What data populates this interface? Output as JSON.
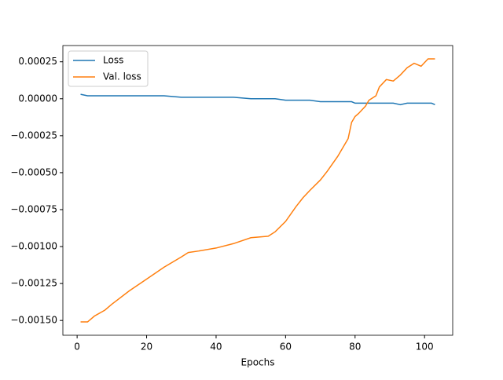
{
  "chart_data": {
    "type": "line",
    "xlabel": "Epochs",
    "x": [
      1,
      3,
      5,
      8,
      10,
      15,
      20,
      25,
      30,
      32,
      35,
      40,
      45,
      50,
      55,
      57,
      60,
      63,
      65,
      67,
      70,
      72,
      75,
      78,
      79,
      80,
      81,
      83,
      84,
      86,
      87,
      89,
      91,
      93,
      95,
      97,
      99,
      101,
      102,
      103
    ],
    "series": [
      {
        "name": "Loss",
        "color": "#1f77b4",
        "values": [
          3e-05,
          2e-05,
          2e-05,
          2e-05,
          2e-05,
          2e-05,
          2e-05,
          2e-05,
          1e-05,
          1e-05,
          1e-05,
          1e-05,
          1e-05,
          0,
          0,
          0,
          -1e-05,
          -1e-05,
          -1e-05,
          -1e-05,
          -2e-05,
          -2e-05,
          -2e-05,
          -2e-05,
          -2e-05,
          -3e-05,
          -3e-05,
          -3e-05,
          -3e-05,
          -3e-05,
          -3e-05,
          -3e-05,
          -3e-05,
          -4e-05,
          -3e-05,
          -3e-05,
          -3e-05,
          -3e-05,
          -3e-05,
          -4e-05
        ]
      },
      {
        "name": "Val. loss",
        "color": "#ff7f0e",
        "values": [
          -0.00151,
          -0.00151,
          -0.00147,
          -0.00143,
          -0.00139,
          -0.0013,
          -0.00122,
          -0.00114,
          -0.00107,
          -0.00104,
          -0.00103,
          -0.00101,
          -0.00098,
          -0.00094,
          -0.00093,
          -0.0009,
          -0.00083,
          -0.00073,
          -0.00067,
          -0.00062,
          -0.00055,
          -0.00049,
          -0.00039,
          -0.00027,
          -0.00016,
          -0.00012,
          -0.0001,
          -5e-05,
          -1e-05,
          2e-05,
          8e-05,
          0.00013,
          0.00012,
          0.00016,
          0.00021,
          0.00024,
          0.00022,
          0.00027,
          0.00027,
          0.00027
        ]
      }
    ],
    "xlim": [
      -4.1,
      108.1
    ],
    "ylim": [
      -0.0016,
      0.00036
    ],
    "xticks": [
      0,
      20,
      40,
      60,
      80,
      100
    ],
    "yticks": [
      {
        "value": 0.00025,
        "label": "0.00025"
      },
      {
        "value": 0,
        "label": "0.00000"
      },
      {
        "value": -0.00025,
        "label": "−0.00025"
      },
      {
        "value": -0.0005,
        "label": "−0.00050"
      },
      {
        "value": -0.00075,
        "label": "−0.00075"
      },
      {
        "value": -0.001,
        "label": "−0.00100"
      },
      {
        "value": -0.00125,
        "label": "−0.00125"
      },
      {
        "value": -0.0015,
        "label": "−0.00150"
      }
    ],
    "legend": "upper left"
  }
}
